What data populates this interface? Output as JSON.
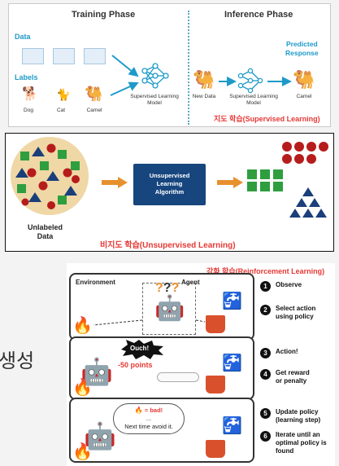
{
  "supervised": {
    "training_title": "Training Phase",
    "inference_title": "Inference Phase",
    "data_label": "Data",
    "labels_label": "Labels",
    "animals": [
      "Dog",
      "Cat",
      "Camel"
    ],
    "model_label": "Supervised Learning\nModel",
    "new_data_label": "New Data",
    "inf_model_label": "Supervised Learning\nModel",
    "predicted_label": "Predicted\nResponse",
    "output_label": "Camel",
    "title": "지도 학습(Supervised Learning)",
    "colors": {
      "teal": "#1e9ac9",
      "red": "#e53935"
    }
  },
  "unsupervised": {
    "algorithm_label": "Unsupervised\nLearning\nAlgorithm",
    "unlabeled_label": "Unlabeled\nData",
    "title": "비지도 학습(Unsupervised Learning)",
    "colors": {
      "box": "#17467f",
      "green": "#2e9e3f",
      "red": "#b71c1c",
      "navy": "#1a3f7a",
      "arrow": "#e7902e",
      "circle": "#efd8a6"
    }
  },
  "reinforcement": {
    "title": "강화 학습(Reinforcement Learning)",
    "environment_label": "Environment",
    "agent_label": "Agent",
    "ouch_label": "Ouch!",
    "penalty_label": "-50 points",
    "bad_label": "= bad!",
    "ellipsis": "...",
    "next_time_label": "Next time avoid it.",
    "steps": [
      {
        "n": "1",
        "text": "Observe"
      },
      {
        "n": "2",
        "text": "Select action\nusing policy"
      },
      {
        "n": "3",
        "text": "Action!"
      },
      {
        "n": "4",
        "text": "Get reward\nor penalty"
      },
      {
        "n": "5",
        "text": "Update policy\n(learning step)"
      },
      {
        "n": "6",
        "text": "Iterate until an\noptimal policy is\nfound"
      }
    ]
  },
  "side_text": "생성"
}
